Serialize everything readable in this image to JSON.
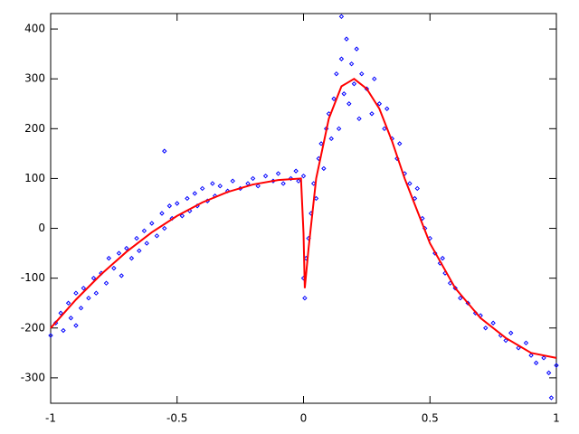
{
  "chart_data": {
    "type": "scatter",
    "xlim": [
      -1,
      1
    ],
    "ylim": [
      -351,
      431
    ],
    "xticks": [
      -1,
      -0.5,
      0,
      0.5,
      1
    ],
    "yticks": [
      -300,
      -200,
      -100,
      0,
      100,
      200,
      300,
      400
    ],
    "series": [
      {
        "type": "scatter",
        "color": "#0000ff",
        "x": [
          -1.0,
          -0.98,
          -0.96,
          -0.95,
          -0.93,
          -0.92,
          -0.9,
          -0.88,
          -0.87,
          -0.85,
          -0.83,
          -0.82,
          -0.8,
          -0.78,
          -0.77,
          -0.75,
          -0.73,
          -0.72,
          -0.7,
          -0.68,
          -0.66,
          -0.65,
          -0.63,
          -0.62,
          -0.6,
          -0.58,
          -0.56,
          -0.55,
          -0.53,
          -0.52,
          -0.5,
          -0.48,
          -0.46,
          -0.45,
          -0.43,
          -0.42,
          -0.4,
          -0.38,
          -0.36,
          -0.35,
          -0.33,
          -0.3,
          -0.28,
          -0.25,
          -0.22,
          -0.2,
          -0.18,
          -0.15,
          -0.12,
          -0.1,
          -0.08,
          -0.05,
          -0.03,
          -0.02,
          0.0,
          -0.55,
          -0.9,
          0.0,
          0.005,
          0.01,
          0.02,
          0.03,
          0.04,
          0.05,
          0.06,
          0.07,
          0.08,
          0.09,
          0.1,
          0.11,
          0.12,
          0.13,
          0.14,
          0.15,
          0.16,
          0.17,
          0.18,
          0.19,
          0.2,
          0.21,
          0.22,
          0.23,
          0.25,
          0.27,
          0.28,
          0.3,
          0.32,
          0.33,
          0.35,
          0.37,
          0.38,
          0.4,
          0.42,
          0.44,
          0.45,
          0.47,
          0.48,
          0.5,
          0.52,
          0.54,
          0.56,
          0.58,
          0.6,
          0.62,
          0.65,
          0.68,
          0.7,
          0.72,
          0.75,
          0.78,
          0.8,
          0.82,
          0.85,
          0.88,
          0.9,
          0.92,
          0.95,
          0.97,
          1.0,
          0.15,
          0.98,
          0.55
        ],
        "values": [
          -215,
          -190,
          -170,
          -205,
          -150,
          -180,
          -130,
          -160,
          -120,
          -140,
          -100,
          -130,
          -90,
          -110,
          -60,
          -80,
          -50,
          -95,
          -40,
          -60,
          -20,
          -45,
          -5,
          -30,
          10,
          -15,
          30,
          0,
          45,
          20,
          50,
          25,
          60,
          35,
          70,
          45,
          80,
          55,
          90,
          65,
          85,
          75,
          95,
          80,
          90,
          100,
          85,
          105,
          95,
          110,
          90,
          100,
          115,
          95,
          105,
          155,
          -195,
          -100,
          -140,
          -60,
          -20,
          30,
          90,
          60,
          140,
          170,
          120,
          200,
          230,
          180,
          260,
          310,
          200,
          340,
          270,
          380,
          250,
          330,
          290,
          360,
          220,
          310,
          280,
          230,
          300,
          250,
          200,
          240,
          180,
          140,
          170,
          110,
          90,
          60,
          80,
          20,
          0,
          -20,
          -50,
          -70,
          -90,
          -110,
          -120,
          -140,
          -150,
          -170,
          -175,
          -200,
          -190,
          -215,
          -225,
          -210,
          -240,
          -230,
          -255,
          -270,
          -260,
          -290,
          -275,
          425,
          -340,
          -60
        ]
      },
      {
        "type": "line",
        "color": "#ff0000",
        "x": [
          -1,
          -0.9,
          -0.8,
          -0.7,
          -0.6,
          -0.5,
          -0.4,
          -0.3,
          -0.2,
          -0.1,
          -0.01,
          0,
          0.005,
          0.02,
          0.05,
          0.1,
          0.15,
          0.2,
          0.25,
          0.3,
          0.35,
          0.4,
          0.45,
          0.5,
          0.6,
          0.7,
          0.8,
          0.9,
          1
        ],
        "values": [
          -200,
          -143,
          -92,
          -47,
          -8,
          25,
          52,
          73,
          88,
          97,
          100,
          -10,
          -120,
          -40,
          100,
          220,
          285,
          300,
          280,
          240,
          175,
          100,
          35,
          -30,
          -120,
          -180,
          -220,
          -250,
          -260
        ]
      }
    ]
  }
}
